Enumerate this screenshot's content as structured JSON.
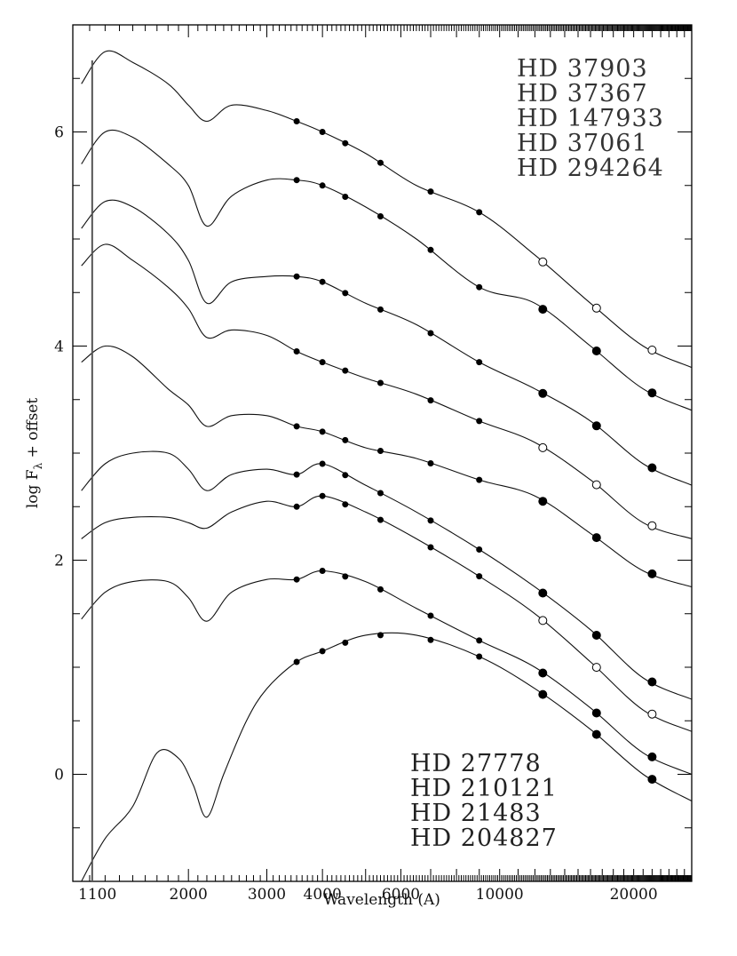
{
  "chart_data": {
    "type": "line",
    "xlabel": "Wavelength (A)",
    "ylabel": "log F",
    "ylabel_sub": "λ",
    "ylabel_suffix": " + offset",
    "x_scale": "log",
    "xlim": [
      1100,
      27000
    ],
    "ylim": [
      -1.0,
      7.0
    ],
    "x_ticks": [
      {
        "value": 1100,
        "label": "1100"
      },
      {
        "value": 2000,
        "label": "2000"
      },
      {
        "value": 3000,
        "label": "3000"
      },
      {
        "value": 4000,
        "label": "4000"
      },
      {
        "value": 6000,
        "label": "6000"
      },
      {
        "value": 10000,
        "label": "10000"
      },
      {
        "value": 20000,
        "label": "20000"
      }
    ],
    "y_ticks": [
      {
        "value": 0,
        "label": "0"
      },
      {
        "value": 2,
        "label": "2"
      },
      {
        "value": 4,
        "label": "4"
      },
      {
        "value": 6,
        "label": "6"
      }
    ],
    "legend_top": [
      "HD 37903",
      "HD 37367",
      "HD 147933",
      "HD 37061",
      "HD 294264"
    ],
    "legend_bottom": [
      "HD 27778",
      "HD 210121",
      "HD 21483",
      "HD 204827"
    ],
    "legend_top_position": "top-right",
    "legend_bottom_position": "bottom-right",
    "series": [
      {
        "values": [
          [
            1150,
            6.45
          ],
          [
            1300,
            6.75
          ],
          [
            1500,
            6.65
          ],
          [
            1800,
            6.45
          ],
          [
            2000,
            6.25
          ],
          [
            2200,
            6.1
          ],
          [
            2500,
            6.25
          ],
          [
            3000,
            6.2
          ],
          [
            3500,
            6.1
          ],
          [
            4000,
            6.0
          ],
          [
            5000,
            5.8
          ],
          [
            6500,
            5.5
          ],
          [
            9000,
            5.25
          ],
          [
            12000,
            4.85
          ],
          [
            16000,
            4.4
          ],
          [
            21000,
            4.0
          ],
          [
            27000,
            3.8
          ]
        ]
      },
      {
        "values": [
          [
            1150,
            5.7
          ],
          [
            1300,
            6.0
          ],
          [
            1500,
            5.95
          ],
          [
            1800,
            5.7
          ],
          [
            2000,
            5.5
          ],
          [
            2200,
            5.12
          ],
          [
            2500,
            5.4
          ],
          [
            3000,
            5.55
          ],
          [
            3500,
            5.55
          ],
          [
            4000,
            5.5
          ],
          [
            5000,
            5.3
          ],
          [
            6500,
            5.0
          ],
          [
            9000,
            4.55
          ],
          [
            12000,
            4.4
          ],
          [
            16000,
            4.0
          ],
          [
            21000,
            3.6
          ],
          [
            27000,
            3.4
          ]
        ]
      },
      {
        "values": [
          [
            1150,
            5.1
          ],
          [
            1300,
            5.35
          ],
          [
            1500,
            5.3
          ],
          [
            1800,
            5.05
          ],
          [
            2000,
            4.8
          ],
          [
            2200,
            4.4
          ],
          [
            2500,
            4.6
          ],
          [
            3000,
            4.65
          ],
          [
            3500,
            4.65
          ],
          [
            4000,
            4.6
          ],
          [
            5000,
            4.4
          ],
          [
            6500,
            4.2
          ],
          [
            9000,
            3.85
          ],
          [
            12000,
            3.6
          ],
          [
            16000,
            3.3
          ],
          [
            21000,
            2.9
          ],
          [
            27000,
            2.7
          ]
        ]
      },
      {
        "values": [
          [
            1150,
            4.75
          ],
          [
            1300,
            4.95
          ],
          [
            1500,
            4.8
          ],
          [
            1800,
            4.55
          ],
          [
            2000,
            4.35
          ],
          [
            2200,
            4.08
          ],
          [
            2500,
            4.15
          ],
          [
            3000,
            4.1
          ],
          [
            3500,
            3.95
          ],
          [
            4000,
            3.85
          ],
          [
            5000,
            3.7
          ],
          [
            6500,
            3.55
          ],
          [
            9000,
            3.3
          ],
          [
            12000,
            3.1
          ],
          [
            16000,
            2.75
          ],
          [
            21000,
            2.35
          ],
          [
            27000,
            2.2
          ]
        ]
      },
      {
        "values": [
          [
            1150,
            3.85
          ],
          [
            1300,
            4.0
          ],
          [
            1500,
            3.9
          ],
          [
            1800,
            3.6
          ],
          [
            2000,
            3.45
          ],
          [
            2200,
            3.25
          ],
          [
            2500,
            3.35
          ],
          [
            3000,
            3.35
          ],
          [
            3500,
            3.25
          ],
          [
            4000,
            3.2
          ],
          [
            5000,
            3.05
          ],
          [
            6500,
            2.95
          ],
          [
            9000,
            2.75
          ],
          [
            12000,
            2.6
          ],
          [
            16000,
            2.25
          ],
          [
            21000,
            1.9
          ],
          [
            27000,
            1.75
          ]
        ]
      },
      {
        "values": [
          [
            1150,
            2.65
          ],
          [
            1300,
            2.9
          ],
          [
            1500,
            3.0
          ],
          [
            1800,
            3.0
          ],
          [
            2000,
            2.85
          ],
          [
            2200,
            2.65
          ],
          [
            2500,
            2.8
          ],
          [
            3000,
            2.85
          ],
          [
            3500,
            2.8
          ],
          [
            4000,
            2.9
          ],
          [
            5000,
            2.7
          ],
          [
            6500,
            2.45
          ],
          [
            9000,
            2.1
          ],
          [
            12000,
            1.75
          ],
          [
            16000,
            1.35
          ],
          [
            21000,
            0.9
          ],
          [
            27000,
            0.7
          ]
        ]
      },
      {
        "values": [
          [
            1150,
            2.2
          ],
          [
            1300,
            2.35
          ],
          [
            1500,
            2.4
          ],
          [
            1800,
            2.4
          ],
          [
            2000,
            2.35
          ],
          [
            2200,
            2.3
          ],
          [
            2500,
            2.45
          ],
          [
            3000,
            2.55
          ],
          [
            3500,
            2.5
          ],
          [
            4000,
            2.6
          ],
          [
            5000,
            2.45
          ],
          [
            6500,
            2.2
          ],
          [
            9000,
            1.85
          ],
          [
            12000,
            1.5
          ],
          [
            16000,
            1.05
          ],
          [
            21000,
            0.6
          ],
          [
            27000,
            0.4
          ]
        ]
      },
      {
        "values": [
          [
            1150,
            1.45
          ],
          [
            1300,
            1.7
          ],
          [
            1500,
            1.8
          ],
          [
            1800,
            1.8
          ],
          [
            2000,
            1.65
          ],
          [
            2200,
            1.43
          ],
          [
            2500,
            1.7
          ],
          [
            3000,
            1.82
          ],
          [
            3500,
            1.82
          ],
          [
            4000,
            1.9
          ],
          [
            5000,
            1.8
          ],
          [
            6500,
            1.55
          ],
          [
            9000,
            1.25
          ],
          [
            12000,
            1.0
          ],
          [
            16000,
            0.62
          ],
          [
            21000,
            0.2
          ],
          [
            27000,
            0.0
          ]
        ]
      },
      {
        "values": [
          [
            1150,
            -1.0
          ],
          [
            1300,
            -0.6
          ],
          [
            1500,
            -0.3
          ],
          [
            1700,
            0.2
          ],
          [
            1900,
            0.15
          ],
          [
            2050,
            -0.1
          ],
          [
            2200,
            -0.4
          ],
          [
            2400,
            0.0
          ],
          [
            2700,
            0.5
          ],
          [
            3000,
            0.8
          ],
          [
            3500,
            1.05
          ],
          [
            4000,
            1.15
          ],
          [
            5000,
            1.3
          ],
          [
            6500,
            1.3
          ],
          [
            9000,
            1.1
          ],
          [
            12000,
            0.8
          ],
          [
            16000,
            0.42
          ],
          [
            21000,
            0.0
          ],
          [
            27000,
            -0.25
          ]
        ]
      }
    ]
  }
}
